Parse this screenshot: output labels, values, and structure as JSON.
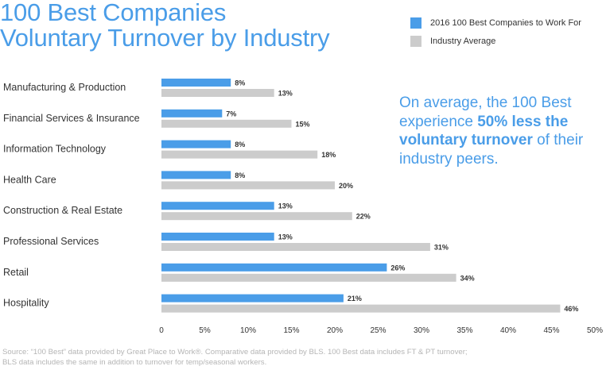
{
  "title": {
    "line1": "100 Best Companies",
    "line2": "Voluntary Turnover by Industry"
  },
  "legend": [
    {
      "label": "2016 100 Best Companies to Work For",
      "color": "#4a9de8"
    },
    {
      "label": "Industry Average",
      "color": "#cccccc"
    }
  ],
  "callout": {
    "pre": "On average, the 100 Best experience ",
    "bold": "50% less the voluntary turnover",
    "post": " of their industry peers."
  },
  "source": {
    "line1": "Source: “100 Best” data provided by Great Place to Work®. Comparative data provided by BLS. 100 Best data includes FT & PT turnover;",
    "line2": "BLS data includes the same in addition to turnover for temp/seasonal workers."
  },
  "chart_data": {
    "type": "bar",
    "orientation": "horizontal",
    "title": "100 Best Companies Voluntary Turnover by Industry",
    "categories": [
      "Manufacturing & Production",
      "Financial Services & Insurance",
      "Information Technology",
      "Health Care",
      "Construction & Real Estate",
      "Professional Services",
      "Retail",
      "Hospitality"
    ],
    "series": [
      {
        "name": "2016 100 Best Companies to Work For",
        "color": "#4a9de8",
        "values": [
          8,
          7,
          8,
          8,
          13,
          13,
          26,
          21
        ]
      },
      {
        "name": "Industry Average",
        "color": "#cccccc",
        "values": [
          13,
          15,
          18,
          20,
          22,
          31,
          34,
          46
        ]
      }
    ],
    "xlim": [
      0,
      50
    ],
    "xticks": [
      0,
      5,
      10,
      15,
      20,
      25,
      30,
      35,
      40,
      45,
      50
    ],
    "value_suffix": "%",
    "grid": false,
    "legend_position": "top-right"
  }
}
